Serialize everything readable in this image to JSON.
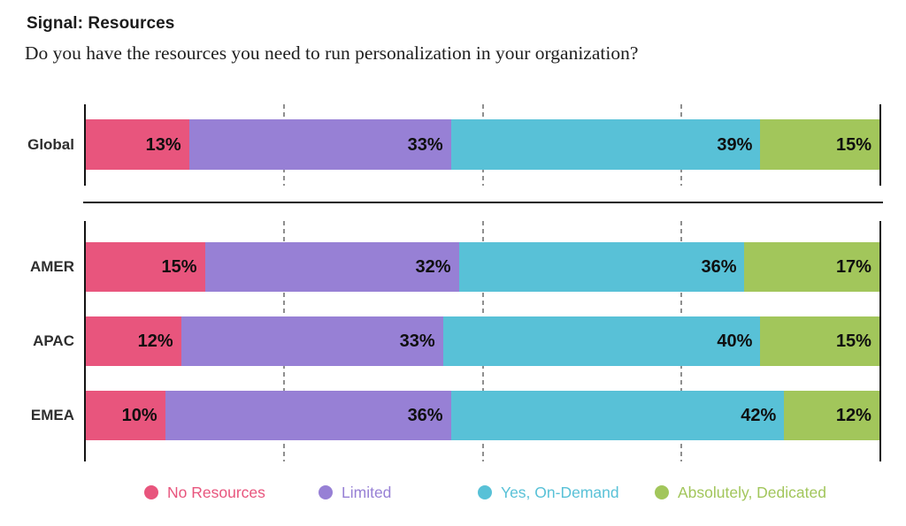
{
  "header": {
    "title": "Signal: Resources",
    "subtitle": "Do you have the resources you need to run personalization in your organization?"
  },
  "chart_data": {
    "type": "bar",
    "variant": "horizontal-stacked",
    "unit": "%",
    "axis_range": [
      0,
      100
    ],
    "gridlines_percent": [
      25,
      50,
      75
    ],
    "grid": "dashed-vertical",
    "legend_position": "bottom",
    "value_label_format": "{value}%",
    "series": [
      {
        "name": "No Resources",
        "color": "#E8557D"
      },
      {
        "name": "Limited",
        "color": "#9780D5"
      },
      {
        "name": "Yes, On-Demand",
        "color": "#58C1D7"
      },
      {
        "name": "Absolutely, Dedicated",
        "color": "#A2C65B"
      }
    ],
    "groups": [
      {
        "name": "global",
        "categories": [
          "Global"
        ],
        "rows": [
          [
            13,
            33,
            39,
            15
          ]
        ]
      },
      {
        "name": "regions",
        "categories": [
          "AMER",
          "APAC",
          "EMEA"
        ],
        "rows": [
          [
            15,
            32,
            36,
            17
          ],
          [
            12,
            33,
            40,
            15
          ],
          [
            10,
            36,
            42,
            12
          ]
        ]
      }
    ]
  },
  "legend": {
    "items": [
      {
        "label": "No Resources",
        "color": "#E8557D"
      },
      {
        "label": "Limited",
        "color": "#9780D5"
      },
      {
        "label": "Yes, On-Demand",
        "color": "#58C1D7"
      },
      {
        "label": "Absolutely, Dedicated",
        "color": "#A2C65B"
      }
    ]
  }
}
